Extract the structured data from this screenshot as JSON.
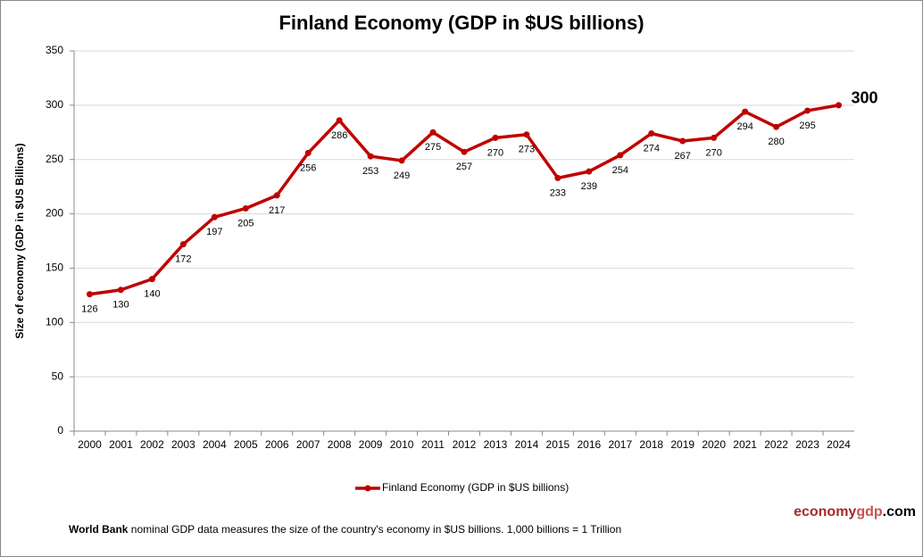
{
  "chart_data": {
    "type": "line",
    "title": "Finland Economy (GDP in $US billions)",
    "y_label": "Size of economy (GDP in $US Billions)",
    "categories": [
      "2000",
      "2001",
      "2002",
      "2003",
      "2004",
      "2005",
      "2006",
      "2007",
      "2008",
      "2009",
      "2010",
      "2011",
      "2012",
      "2013",
      "2014",
      "2015",
      "2016",
      "2017",
      "2018",
      "2019",
      "2020",
      "2021",
      "2022",
      "2023",
      "2024"
    ],
    "series": [
      {
        "name": "Finland Economy (GDP in $US billions)",
        "color": "#c00000",
        "values": [
          126,
          130,
          140,
          172,
          197,
          205,
          217,
          256,
          286,
          253,
          249,
          275,
          257,
          270,
          273,
          233,
          239,
          254,
          274,
          267,
          270,
          294,
          280,
          295,
          300
        ]
      }
    ],
    "ylim": [
      0,
      350
    ],
    "yticks": [
      0,
      50,
      100,
      150,
      200,
      250,
      300,
      350
    ],
    "grid": true,
    "legend": "bottom"
  },
  "footer": {
    "source": "World Bank",
    "text": "nominal GDP data  measures the size of the country's economy in $US billions. 1,000 billions = 1 Trillion"
  },
  "brand": {
    "parts": [
      "economy",
      "gdp",
      ".com"
    ]
  }
}
